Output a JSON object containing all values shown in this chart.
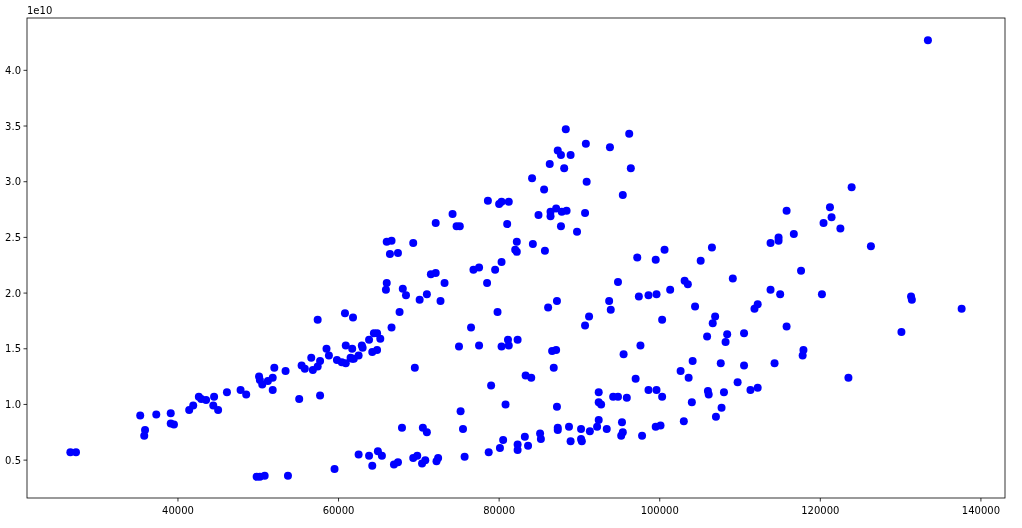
{
  "chart_data": {
    "type": "scatter",
    "color": "#0000ff",
    "marker": "circle",
    "grid": false,
    "annotations": [
      "1e10"
    ],
    "xlim": [
      21200,
      143000
    ],
    "xticks": [
      40000,
      60000,
      80000,
      100000,
      120000,
      140000
    ],
    "ylim": [
      0.16,
      4.47
    ],
    "yticks": [
      0.5,
      {
        "value": 1,
        "label": "1.0"
      },
      1.5,
      {
        "value": 2,
        "label": "2.0"
      },
      2.5,
      {
        "value": 3,
        "label": "3.0"
      },
      3.5,
      {
        "value": 4,
        "label": "4.0"
      }
    ],
    "x": [
      26600,
      27300,
      35300,
      35900,
      35800,
      37300,
      39100,
      39100,
      39500,
      41400,
      41900,
      42600,
      42900,
      43500,
      44500,
      44400,
      45000,
      46100,
      47800,
      48500,
      50100,
      50200,
      50500,
      51200,
      51800,
      52000,
      51800,
      53400,
      55100,
      55400,
      55800,
      56600,
      56800,
      57400,
      57700,
      57700,
      57400,
      58500,
      58800,
      59800,
      60400,
      60900,
      60800,
      61800,
      60900,
      61700,
      61700,
      49800,
      50200,
      50800,
      53700,
      59500,
      88300,
      96200,
      90800,
      93800,
      87300,
      87700,
      88900,
      86300,
      88100,
      96400,
      84100,
      90900,
      85600,
      95400,
      78600,
      80000,
      80300,
      81200,
      74200,
      72100,
      74700,
      75100,
      81000,
      84900,
      86400,
      86400,
      87100,
      87800,
      88400,
      90700,
      87700,
      89700,
      66000,
      66600,
      69300,
      66400,
      67400,
      82200,
      82000,
      82200,
      84200,
      85700,
      80300,
      76800,
      77500,
      79500,
      78500,
      71500,
      72100,
      73200,
      66000,
      65900,
      68000,
      68400,
      70100,
      71000,
      72700,
      67600,
      66600,
      97200,
      99500,
      100600,
      94800,
      97400,
      98600,
      99600,
      101300,
      93700,
      93900,
      91200,
      90700,
      100300,
      86100,
      87200,
      79800,
      76500,
      75000,
      77500,
      80300,
      81100,
      81200,
      82300,
      86600,
      87100,
      86800,
      95500,
      97600,
      69500,
      83300,
      84000,
      79000,
      97000,
      92400,
      92400,
      92700,
      94200,
      94800,
      95900,
      98600,
      99600,
      100300,
      80800,
      87200,
      75200,
      67900,
      70500,
      71000,
      75500,
      87300,
      87300,
      88700,
      90200,
      91300,
      92200,
      92400,
      93400,
      95300,
      95200,
      95400,
      97800,
      99500,
      100100,
      88900,
      90200,
      90300,
      85100,
      85200,
      83200,
      83600,
      82300,
      82300,
      80500,
      80100,
      78700,
      75700,
      62500,
      63800,
      64200,
      64900,
      65400,
      66900,
      67400,
      69300,
      69800,
      70400,
      70800,
      72200,
      72400,
      62900,
      63000,
      63800,
      64400,
      64800,
      65200,
      64200,
      64800,
      62500,
      61500,
      61900,
      133400,
      123900,
      115800,
      121200,
      121400,
      120400,
      122500,
      116700,
      113800,
      114800,
      114800,
      126300,
      106500,
      105100,
      117600,
      109100,
      103100,
      103500,
      113800,
      115000,
      120200,
      131300,
      131400,
      137600,
      104400,
      112200,
      111800,
      106900,
      106600,
      115800,
      108400,
      110500,
      105900,
      108200,
      130100,
      117900,
      117800,
      104100,
      107600,
      110500,
      114300,
      102600,
      103600,
      109700,
      123500,
      111300,
      112200,
      106000,
      106100,
      108000,
      104000,
      107700,
      107000,
      103000
    ],
    "values": [
      0.57,
      0.57,
      0.9,
      0.77,
      0.72,
      0.91,
      0.92,
      0.83,
      0.82,
      0.95,
      0.99,
      1.07,
      1.05,
      1.04,
      1.07,
      0.99,
      0.95,
      1.11,
      1.13,
      1.09,
      1.25,
      1.22,
      1.18,
      1.21,
      1.24,
      1.33,
      1.13,
      1.3,
      1.05,
      1.35,
      1.32,
      1.42,
      1.31,
      1.34,
      1.39,
      1.08,
      1.76,
      1.5,
      1.44,
      1.4,
      1.38,
      1.37,
      1.82,
      1.78,
      1.53,
      1.5,
      1.41,
      0.35,
      0.35,
      0.36,
      0.36,
      0.42,
      3.47,
      3.43,
      3.34,
      3.31,
      3.28,
      3.24,
      3.24,
      3.16,
      3.12,
      3.12,
      3.03,
      3.0,
      2.93,
      2.88,
      2.83,
      2.8,
      2.82,
      2.82,
      2.71,
      2.63,
      2.6,
      2.6,
      2.62,
      2.7,
      2.73,
      2.69,
      2.76,
      2.73,
      2.74,
      2.72,
      2.6,
      2.55,
      2.46,
      2.47,
      2.45,
      2.35,
      2.36,
      2.46,
      2.39,
      2.37,
      2.44,
      2.38,
      2.28,
      2.21,
      2.23,
      2.21,
      2.09,
      2.17,
      2.18,
      2.09,
      2.09,
      2.03,
      2.04,
      1.98,
      1.94,
      1.99,
      1.93,
      1.83,
      1.69,
      2.32,
      2.3,
      2.39,
      2.1,
      1.97,
      1.98,
      1.99,
      2.03,
      1.93,
      1.85,
      1.79,
      1.71,
      1.76,
      1.87,
      1.93,
      1.83,
      1.69,
      1.52,
      1.53,
      1.52,
      1.58,
      1.53,
      1.58,
      1.48,
      1.49,
      1.33,
      1.45,
      1.53,
      1.33,
      1.26,
      1.24,
      1.17,
      1.23,
      1.11,
      1.02,
      1.0,
      1.07,
      1.07,
      1.06,
      1.13,
      1.13,
      1.07,
      1.0,
      0.98,
      0.94,
      0.79,
      0.79,
      0.75,
      0.78,
      0.79,
      0.77,
      0.8,
      0.78,
      0.76,
      0.8,
      0.86,
      0.78,
      0.84,
      0.72,
      0.75,
      0.72,
      0.8,
      0.81,
      0.67,
      0.69,
      0.67,
      0.74,
      0.69,
      0.71,
      0.63,
      0.64,
      0.59,
      0.68,
      0.61,
      0.57,
      0.53,
      0.55,
      0.54,
      0.45,
      0.58,
      0.54,
      0.46,
      0.48,
      0.52,
      0.54,
      0.47,
      0.5,
      0.49,
      0.52,
      1.53,
      1.51,
      1.58,
      1.64,
      1.64,
      1.59,
      1.47,
      1.49,
      1.44,
      1.42,
      1.41,
      4.27,
      2.95,
      2.74,
      2.77,
      2.68,
      2.63,
      2.58,
      2.53,
      2.45,
      2.47,
      2.5,
      2.42,
      2.41,
      2.29,
      2.2,
      2.13,
      2.11,
      2.08,
      2.03,
      1.99,
      1.99,
      1.97,
      1.94,
      1.86,
      1.88,
      1.9,
      1.86,
      1.79,
      1.73,
      1.7,
      1.63,
      1.64,
      1.61,
      1.56,
      1.65,
      1.49,
      1.44,
      1.39,
      1.37,
      1.35,
      1.37,
      1.3,
      1.24,
      1.2,
      1.24,
      1.13,
      1.15,
      1.12,
      1.09,
      1.11,
      1.02,
      0.97,
      0.89,
      0.85
    ]
  }
}
